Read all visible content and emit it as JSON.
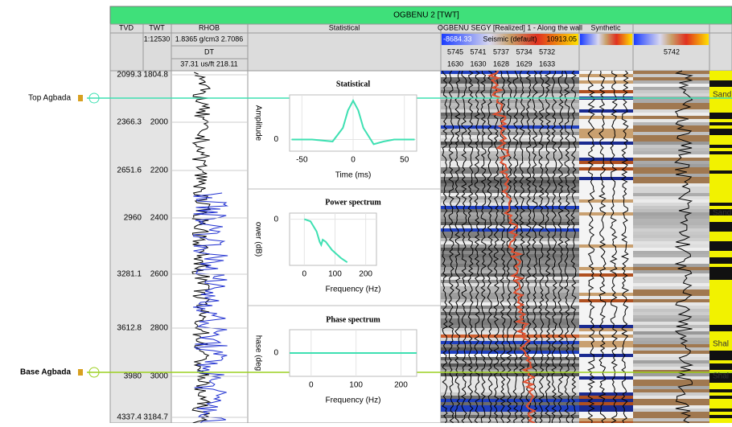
{
  "header": {
    "title": "OGBENU 2 [TWT]"
  },
  "columns": {
    "tvd": "TVD",
    "twt": "TWT",
    "scale": "1:12530",
    "rhob": "RHOB",
    "rhob_range": "1.8365 g/cm3 2.7086",
    "dt": "DT",
    "dt_range": "37.31 us/ft 218.11",
    "statistical": "Statistical",
    "seismic": "OGBENU SEGY [Realized] 1 - Along the wall",
    "seismic_min": "-8684.33",
    "seismic_name": "Seismic (default)",
    "seismic_max": "10913.05",
    "traces": "5745 5741 5737 5734 5732",
    "trace_twt": "1630 1630 1628 1629 1633",
    "synthetic": "Synthetic",
    "trace": "5742"
  },
  "horizons": [
    "Top Agbada",
    "Base Agbada"
  ],
  "tvd_labels": [
    2099.3,
    2366.3,
    2651.6,
    2960,
    3281.1,
    3612.8,
    3980,
    4337.4
  ],
  "twt_labels": [
    1804.8,
    2000,
    2200,
    2400,
    2600,
    2800,
    3000,
    3184.7
  ],
  "facies_labels": [
    "Sand",
    "Sand",
    "Shal",
    "Shal"
  ],
  "chart_data": [
    {
      "type": "line",
      "title": "Statistical",
      "y_label": "Amplitude",
      "x_label": "Time (ms)",
      "color": "#3ee0b2",
      "x": [
        -60,
        -40,
        -20,
        -10,
        -5,
        0,
        5,
        10,
        20,
        30,
        40,
        60
      ],
      "values": [
        0,
        0,
        -0.05,
        0.3,
        0.75,
        1,
        0.75,
        0.3,
        -0.12,
        -0.05,
        0,
        0
      ],
      "xlim": [
        -62,
        62
      ],
      "ylim": [
        -0.3,
        1.15
      ],
      "xticks": [
        -50,
        0,
        50
      ],
      "yticks": [
        0
      ],
      "grid": true
    },
    {
      "type": "line",
      "title": "Power spectrum",
      "y_label": "ower (dB)",
      "x_label": "Frequency (Hz)",
      "color": "#3ee0b2",
      "x": [
        0,
        20,
        40,
        50,
        55,
        60,
        70,
        90,
        120,
        140
      ],
      "values": [
        0,
        -2,
        -12,
        -22,
        -25,
        -20,
        -22,
        -30,
        -38,
        -42
      ],
      "xlim": [
        -48,
        235
      ],
      "ylim": [
        -45,
        6
      ],
      "xticks": [
        0,
        100,
        200
      ],
      "yticks": [
        0
      ],
      "grid": true
    },
    {
      "type": "line",
      "title": "Phase spectrum",
      "y_label": "hase (deg",
      "x_label": "Frequency (Hz)",
      "color": "#3ee0b2",
      "x": [
        -48,
        235
      ],
      "values": [
        0,
        0
      ],
      "xlim": [
        -48,
        235
      ],
      "ylim": [
        -180,
        180
      ],
      "xticks": [
        0,
        100,
        200
      ],
      "yticks": [
        0
      ],
      "grid": true
    }
  ]
}
